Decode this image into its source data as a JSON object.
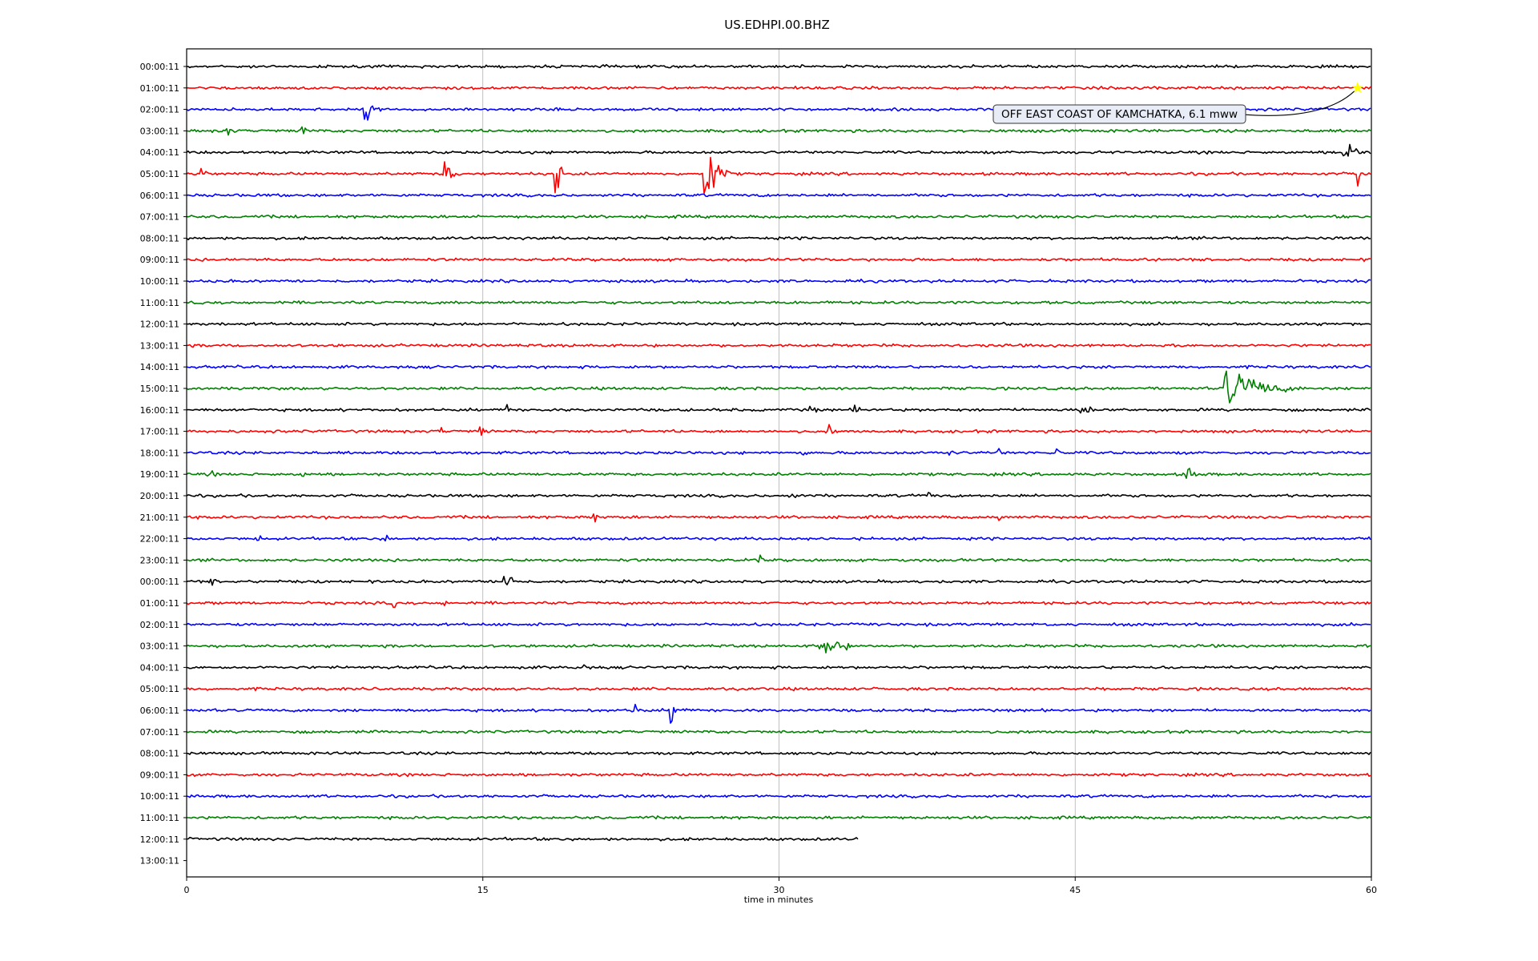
{
  "chart_data": {
    "type": "line",
    "title": "US.EDHPI.00.BHZ",
    "xlabel": "time in minutes",
    "ylabel": "",
    "xlim": [
      0,
      60
    ],
    "xticks": [
      0,
      15,
      30,
      45,
      60
    ],
    "x_gridlines": [
      15,
      30,
      45
    ],
    "legend": "none",
    "trace_colors": [
      "#000000",
      "#ff0000",
      "#0000ff",
      "#008000"
    ],
    "row_labels": [
      "00:00:11",
      "01:00:11",
      "02:00:11",
      "03:00:11",
      "04:00:11",
      "05:00:11",
      "06:00:11",
      "07:00:11",
      "08:00:11",
      "09:00:11",
      "10:00:11",
      "11:00:11",
      "12:00:11",
      "13:00:11",
      "14:00:11",
      "15:00:11",
      "16:00:11",
      "17:00:11",
      "18:00:11",
      "19:00:11",
      "20:00:11",
      "21:00:11",
      "22:00:11",
      "23:00:11",
      "00:00:11",
      "01:00:11",
      "02:00:11",
      "03:00:11",
      "04:00:11",
      "05:00:11",
      "06:00:11",
      "07:00:11",
      "08:00:11",
      "09:00:11",
      "10:00:11",
      "11:00:11",
      "12:00:11",
      "13:00:11"
    ],
    "trace_end_minutes": [
      60,
      60,
      60,
      60,
      60,
      60,
      60,
      60,
      60,
      60,
      60,
      60,
      60,
      60,
      60,
      60,
      60,
      60,
      60,
      60,
      60,
      60,
      60,
      60,
      60,
      60,
      60,
      60,
      60,
      60,
      60,
      60,
      60,
      60,
      60,
      60,
      34,
      0
    ],
    "events": [
      {
        "row": 2,
        "minute": 9.0,
        "amplitude": 0.7,
        "duration": 1.2
      },
      {
        "row": 3,
        "minute": 2.0,
        "amplitude": 0.5,
        "duration": 0.8
      },
      {
        "row": 3,
        "minute": 5.8,
        "amplitude": 0.5,
        "duration": 1.0
      },
      {
        "row": 4,
        "minute": 58.5,
        "amplitude": 1.5,
        "duration": 1.4
      },
      {
        "row": 5,
        "minute": 0.7,
        "amplitude": 0.6,
        "duration": 0.6
      },
      {
        "row": 5,
        "minute": 13.0,
        "amplitude": 1.4,
        "duration": 0.9
      },
      {
        "row": 5,
        "minute": 18.6,
        "amplitude": 2.2,
        "duration": 0.7
      },
      {
        "row": 5,
        "minute": 26.2,
        "amplitude": 2.4,
        "duration": 1.5
      },
      {
        "row": 5,
        "minute": 59.2,
        "amplitude": 1.6,
        "duration": 0.6
      },
      {
        "row": 15,
        "minute": 52.5,
        "amplitude": 1.2,
        "duration": 5.0
      },
      {
        "row": 16,
        "minute": 16.2,
        "amplitude": 0.5,
        "duration": 0.6
      },
      {
        "row": 16,
        "minute": 31.5,
        "amplitude": 0.5,
        "duration": 0.8
      },
      {
        "row": 16,
        "minute": 33.8,
        "amplitude": 0.6,
        "duration": 0.6
      },
      {
        "row": 16,
        "minute": 45.2,
        "amplitude": 0.6,
        "duration": 1.5
      },
      {
        "row": 17,
        "minute": 12.8,
        "amplitude": 0.5,
        "duration": 0.6
      },
      {
        "row": 17,
        "minute": 14.8,
        "amplitude": 0.4,
        "duration": 1.0
      },
      {
        "row": 17,
        "minute": 32.5,
        "amplitude": 0.8,
        "duration": 0.5
      },
      {
        "row": 18,
        "minute": 31.2,
        "amplitude": 0.4,
        "duration": 0.5
      },
      {
        "row": 18,
        "minute": 38.6,
        "amplitude": 0.5,
        "duration": 0.6
      },
      {
        "row": 18,
        "minute": 41.0,
        "amplitude": 0.5,
        "duration": 0.6
      },
      {
        "row": 18,
        "minute": 44.0,
        "amplitude": 0.5,
        "duration": 0.6
      },
      {
        "row": 19,
        "minute": 1.2,
        "amplitude": 0.4,
        "duration": 0.5
      },
      {
        "row": 19,
        "minute": 5.8,
        "amplitude": 0.4,
        "duration": 0.5
      },
      {
        "row": 19,
        "minute": 50.5,
        "amplitude": 0.5,
        "duration": 1.8
      },
      {
        "row": 20,
        "minute": 30.5,
        "amplitude": 0.4,
        "duration": 0.8
      },
      {
        "row": 20,
        "minute": 37.5,
        "amplitude": 0.4,
        "duration": 0.8
      },
      {
        "row": 21,
        "minute": 20.6,
        "amplitude": 0.5,
        "duration": 0.6
      },
      {
        "row": 21,
        "minute": 41.0,
        "amplitude": 0.6,
        "duration": 0.4
      },
      {
        "row": 22,
        "minute": 3.5,
        "amplitude": 0.8,
        "duration": 0.5
      },
      {
        "row": 22,
        "minute": 10.0,
        "amplitude": 0.5,
        "duration": 0.8
      },
      {
        "row": 23,
        "minute": 28.9,
        "amplitude": 0.5,
        "duration": 0.6
      },
      {
        "row": 24,
        "minute": 1.2,
        "amplitude": 0.4,
        "duration": 0.6
      },
      {
        "row": 24,
        "minute": 16.0,
        "amplitude": 0.8,
        "duration": 1.4
      },
      {
        "row": 25,
        "minute": 10.4,
        "amplitude": 0.5,
        "duration": 0.5
      },
      {
        "row": 25,
        "minute": 13.0,
        "amplitude": 0.9,
        "duration": 0.3
      },
      {
        "row": 27,
        "minute": 32.0,
        "amplitude": 0.8,
        "duration": 2.8
      },
      {
        "row": 28,
        "minute": 20.0,
        "amplitude": 0.9,
        "duration": 0.5
      },
      {
        "row": 30,
        "minute": 22.5,
        "amplitude": 0.5,
        "duration": 1.5
      },
      {
        "row": 30,
        "minute": 24.5,
        "amplitude": 0.9,
        "duration": 1.2
      }
    ],
    "annotation": {
      "text": "OFF EAST COAST OF KAMCHATKA, 6.1 mww",
      "row": 1,
      "minute": 59.3,
      "marker": "star",
      "marker_color": "#ffff00"
    }
  }
}
